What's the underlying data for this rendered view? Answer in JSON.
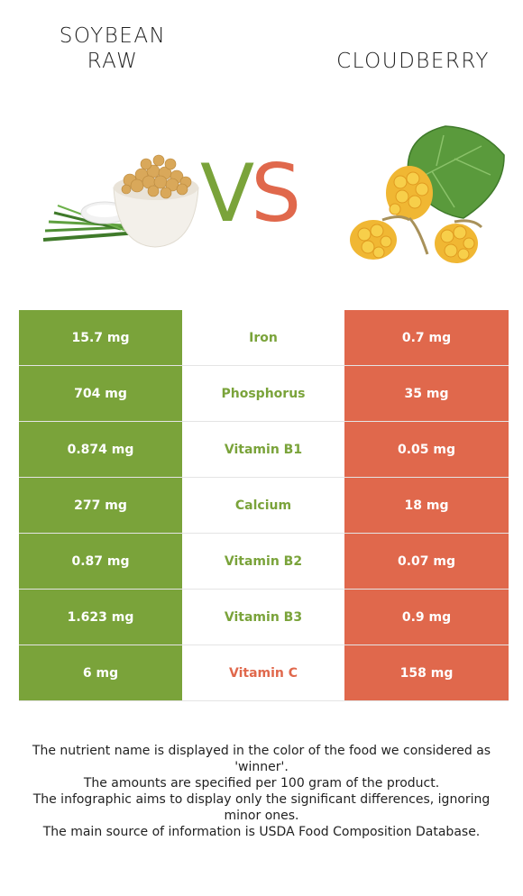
{
  "header": {
    "left_food": "SOYBEAN\nRAW",
    "right_food": "CLOUDBERRY",
    "vs_v": "V",
    "vs_s": "S"
  },
  "colors": {
    "left_winner": "#7aa33a",
    "right_winner": "#e0684c"
  },
  "rows": [
    {
      "left": "15.7 mg",
      "nutrient": "Iron",
      "right": "0.7 mg",
      "winner": "left"
    },
    {
      "left": "704 mg",
      "nutrient": "Phosphorus",
      "right": "35 mg",
      "winner": "left"
    },
    {
      "left": "0.874 mg",
      "nutrient": "Vitamin B1",
      "right": "0.05 mg",
      "winner": "left"
    },
    {
      "left": "277 mg",
      "nutrient": "Calcium",
      "right": "18 mg",
      "winner": "left"
    },
    {
      "left": "0.87 mg",
      "nutrient": "Vitamin B2",
      "right": "0.07 mg",
      "winner": "left"
    },
    {
      "left": "1.623 mg",
      "nutrient": "Vitamin B3",
      "right": "0.9 mg",
      "winner": "left"
    },
    {
      "left": "6 mg",
      "nutrient": "Vitamin C",
      "right": "158 mg",
      "winner": "right"
    }
  ],
  "notes": [
    "The nutrient name is displayed in the color of the food we considered as 'winner'.",
    "The amounts are specified per 100 gram of the product.",
    "The infographic aims to display only the significant differences, ignoring minor ones.",
    "The main source of information is USDA Food Composition Database."
  ]
}
